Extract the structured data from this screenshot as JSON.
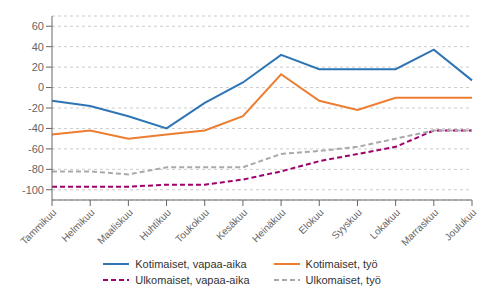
{
  "chart_data": {
    "type": "line",
    "categories": [
      "Tammikuu",
      "Helmikuu",
      "Maaliskuu",
      "Huhtikuu",
      "Toukokuu",
      "Kesäkuu",
      "Heinäkuu",
      "Elokuu",
      "Syyskuu",
      "Lokakuu",
      "Marraskuu",
      "Joulukuu"
    ],
    "series": [
      {
        "name": "Kotimaiset, vapaa-aika",
        "color": "#2E75B6",
        "line_style": "solid",
        "values": [
          -13,
          -18,
          -28,
          -40,
          -15,
          5,
          32,
          18,
          18,
          18,
          37,
          7
        ]
      },
      {
        "name": "Kotimaiset, työ",
        "color": "#ED7D31",
        "line_style": "solid",
        "values": [
          -46,
          -42,
          -50,
          -46,
          -42,
          -28,
          13,
          -13,
          -22,
          -10,
          -10,
          -10
        ]
      },
      {
        "name": "Ulkomaiset, vapaa-aika",
        "color": "#9E006C",
        "line_style": "dashed",
        "values": [
          -97,
          -97,
          -97,
          -95,
          -95,
          -90,
          -82,
          -72,
          -65,
          -58,
          -42,
          -42
        ]
      },
      {
        "name": "Ulkomaiset, työ",
        "color": "#A9A9A9",
        "line_style": "dashed",
        "values": [
          -82,
          -82,
          -85,
          -78,
          -78,
          -78,
          -65,
          -62,
          -58,
          -50,
          -42,
          -42
        ]
      }
    ],
    "ylim": [
      -110,
      70
    ],
    "yticks": [
      -100,
      -80,
      -60,
      -40,
      -20,
      0,
      20,
      40,
      60
    ],
    "grid": true,
    "legend": "bottom"
  }
}
